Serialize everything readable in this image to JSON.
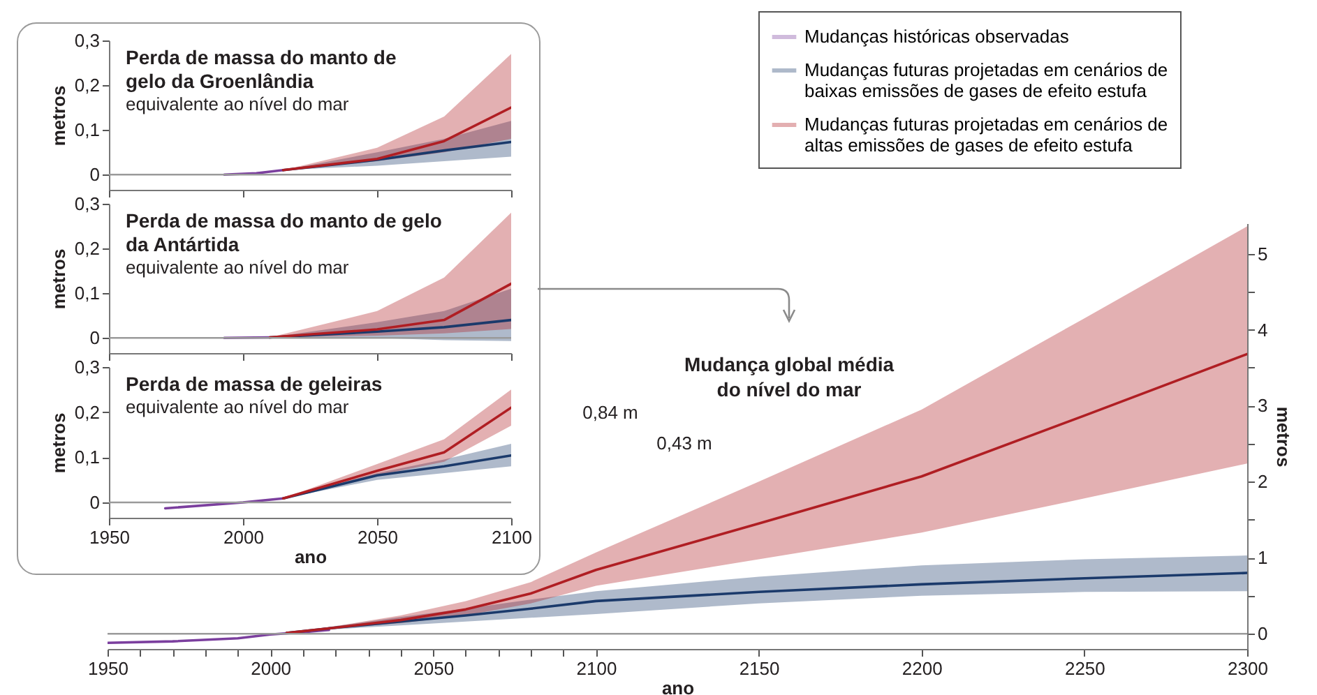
{
  "chart_data": [
    {
      "type": "line",
      "xlabel": "ano",
      "ylabel": "metros",
      "xlim": [
        1950,
        2300
      ],
      "xticks": [
        1950,
        {
          "value": 1960,
          "label": null
        },
        {
          "value": 1970,
          "label": null
        },
        {
          "value": 1980,
          "label": null
        },
        {
          "value": 1990,
          "label": null
        },
        2000,
        {
          "value": 2010,
          "label": null
        },
        {
          "value": 2020,
          "label": null
        },
        {
          "value": 2030,
          "label": null
        },
        {
          "value": 2040,
          "label": null
        },
        2050,
        {
          "value": 2060,
          "label": null
        },
        {
          "value": 2070,
          "label": null
        },
        {
          "value": 2080,
          "label": null
        },
        {
          "value": 2090,
          "label": null
        },
        2100,
        2150,
        2200,
        2250,
        2300
      ],
      "ylim": [
        -0.2,
        5.4
      ],
      "yticks": [
        0,
        {
          "value": 0.5,
          "label": null
        },
        1,
        {
          "value": 1.5,
          "label": null
        },
        2,
        {
          "value": 2.5,
          "label": null
        },
        3,
        {
          "value": 3.5,
          "label": null
        },
        4,
        {
          "value": 4.5,
          "label": null
        },
        5
      ],
      "legend": "top right",
      "ref_lines": [
        {
          "axis": "y",
          "value": 0,
          "color": "#9a9a9a"
        }
      ],
      "annotations": [
        "Mudança global média do nível do mar",
        "0,84 m",
        "0,43 m"
      ],
      "series": [
        {
          "name": "Mudanças históricas observadas",
          "color": "#7b3f9e",
          "x": [
            1950,
            1970,
            1990,
            2000,
            2010,
            2018
          ],
          "values": [
            -0.12,
            -0.1,
            -0.06,
            -0.01,
            0.02,
            0.05
          ]
        },
        {
          "name": "Mudanças futuras projetadas em cenários de baixas emissões de gases de efeito estufa",
          "color": "#1b3a6b",
          "x": [
            2005,
            2020,
            2040,
            2060,
            2080,
            2100,
            2150,
            2200,
            2250,
            2300
          ],
          "values": [
            0.01,
            0.08,
            0.16,
            0.24,
            0.33,
            0.43,
            0.55,
            0.65,
            0.73,
            0.8
          ],
          "lower": [
            0.01,
            0.06,
            0.11,
            0.16,
            0.21,
            0.26,
            0.4,
            0.5,
            0.55,
            0.56
          ],
          "upper": [
            0.01,
            0.1,
            0.22,
            0.33,
            0.45,
            0.56,
            0.75,
            0.9,
            0.98,
            1.03
          ]
        },
        {
          "name": "Mudanças futuras projetadas em cenários de altas emissões de gases de efeito estufa",
          "color": "#b01e23",
          "x": [
            2005,
            2020,
            2040,
            2060,
            2080,
            2100,
            2150,
            2200,
            2250,
            2300
          ],
          "values": [
            0.01,
            0.08,
            0.18,
            0.32,
            0.53,
            0.84,
            1.45,
            2.07,
            2.87,
            3.68
          ],
          "lower": [
            0.01,
            0.07,
            0.14,
            0.24,
            0.4,
            0.63,
            0.98,
            1.33,
            1.78,
            2.24
          ],
          "upper": [
            0.01,
            0.1,
            0.24,
            0.43,
            0.68,
            1.07,
            2.0,
            2.95,
            4.15,
            5.36
          ]
        }
      ]
    },
    {
      "type": "line",
      "title": "Perda de massa do manto de gelo da Groenlândia",
      "subtitle": "equivalente ao nível do mar",
      "ylabel": "metros",
      "xlim": [
        1950,
        2100
      ],
      "xticks": [
        1950,
        2000,
        2050,
        2100
      ],
      "ylim": [
        -0.034,
        0.3
      ],
      "yticks": [
        0,
        {
          "value": 0.1,
          "label": "0,1"
        },
        {
          "value": 0.2,
          "label": "0,2"
        },
        {
          "value": 0.3,
          "label": "0,3"
        }
      ],
      "tick_labels": "y",
      "ref_lines": [
        {
          "axis": "y",
          "value": 0,
          "color": "#9a9a9a"
        }
      ],
      "series": [
        {
          "color": "#7b3f9e",
          "x": [
            1993,
            2005,
            2015
          ],
          "values": [
            0,
            0.003,
            0.01
          ]
        },
        {
          "color": "#1b3a6b",
          "x": [
            2015,
            2050,
            2075,
            2100
          ],
          "values": [
            0.01,
            0.033,
            0.054,
            0.073
          ],
          "lower": [
            0.01,
            0.02,
            0.03,
            0.04
          ],
          "upper": [
            0.01,
            0.05,
            0.08,
            0.12
          ]
        },
        {
          "color": "#b01e23",
          "x": [
            2015,
            2050,
            2075,
            2100
          ],
          "values": [
            0.01,
            0.035,
            0.075,
            0.15
          ],
          "lower": [
            0.01,
            0.03,
            0.05,
            0.08
          ],
          "upper": [
            0.01,
            0.06,
            0.13,
            0.27
          ]
        }
      ]
    },
    {
      "type": "line",
      "title": "Perda de massa do manto de gelo da Antártida",
      "subtitle": "equivalente ao nível do mar",
      "ylabel": "metros",
      "xlim": [
        1950,
        2100
      ],
      "xticks": [
        1950,
        2000,
        2050,
        2100
      ],
      "ylim": [
        -0.034,
        0.3
      ],
      "yticks": [
        0,
        {
          "value": 0.1,
          "label": "0,1"
        },
        {
          "value": 0.2,
          "label": "0,2"
        },
        {
          "value": 0.3,
          "label": "0,3"
        }
      ],
      "tick_labels": "y",
      "ref_lines": [
        {
          "axis": "y",
          "value": 0,
          "color": "#9a9a9a"
        }
      ],
      "series": [
        {
          "color": "#7b3f9e",
          "x": [
            1993,
            2010
          ],
          "values": [
            0,
            0.001
          ]
        },
        {
          "color": "#1b3a6b",
          "x": [
            2010,
            2050,
            2075,
            2100
          ],
          "values": [
            0.001,
            0.014,
            0.024,
            0.04
          ],
          "lower": [
            0.001,
            0,
            -0.005,
            -0.007
          ],
          "upper": [
            0.001,
            0.035,
            0.06,
            0.11
          ]
        },
        {
          "color": "#b01e23",
          "x": [
            2010,
            2050,
            2075,
            2100
          ],
          "values": [
            0.001,
            0.019,
            0.04,
            0.121
          ],
          "lower": [
            0.001,
            0.005,
            0.01,
            0.02
          ],
          "upper": [
            0.001,
            0.06,
            0.135,
            0.28
          ]
        }
      ]
    },
    {
      "type": "line",
      "title": "Perda de massa de geleiras",
      "subtitle": "equivalente ao nível do mar",
      "xlabel": "ano",
      "ylabel": "metros",
      "xlim": [
        1950,
        2100
      ],
      "xticks": [
        1950,
        2000,
        2050,
        2100
      ],
      "ylim": [
        -0.034,
        0.3
      ],
      "yticks": [
        0,
        {
          "value": 0.1,
          "label": "0,1"
        },
        {
          "value": 0.2,
          "label": "0,2"
        },
        {
          "value": 0.3,
          "label": "0,3"
        }
      ],
      "ref_lines": [
        {
          "axis": "y",
          "value": 0,
          "color": "#9a9a9a"
        }
      ],
      "series": [
        {
          "color": "#7b3f9e",
          "x": [
            1971,
            2000,
            2015
          ],
          "values": [
            -0.013,
            0,
            0.009
          ]
        },
        {
          "color": "#1b3a6b",
          "x": [
            2015,
            2050,
            2075,
            2100
          ],
          "values": [
            0.009,
            0.06,
            0.08,
            0.104
          ],
          "lower": [
            0.009,
            0.05,
            0.065,
            0.08
          ],
          "upper": [
            0.009,
            0.065,
            0.095,
            0.13
          ]
        },
        {
          "color": "#b01e23",
          "x": [
            2015,
            2050,
            2075,
            2100
          ],
          "values": [
            0.009,
            0.07,
            0.111,
            0.21
          ],
          "lower": [
            0.009,
            0.06,
            0.09,
            0.17
          ],
          "upper": [
            0.009,
            0.085,
            0.14,
            0.25
          ]
        }
      ]
    }
  ]
}
